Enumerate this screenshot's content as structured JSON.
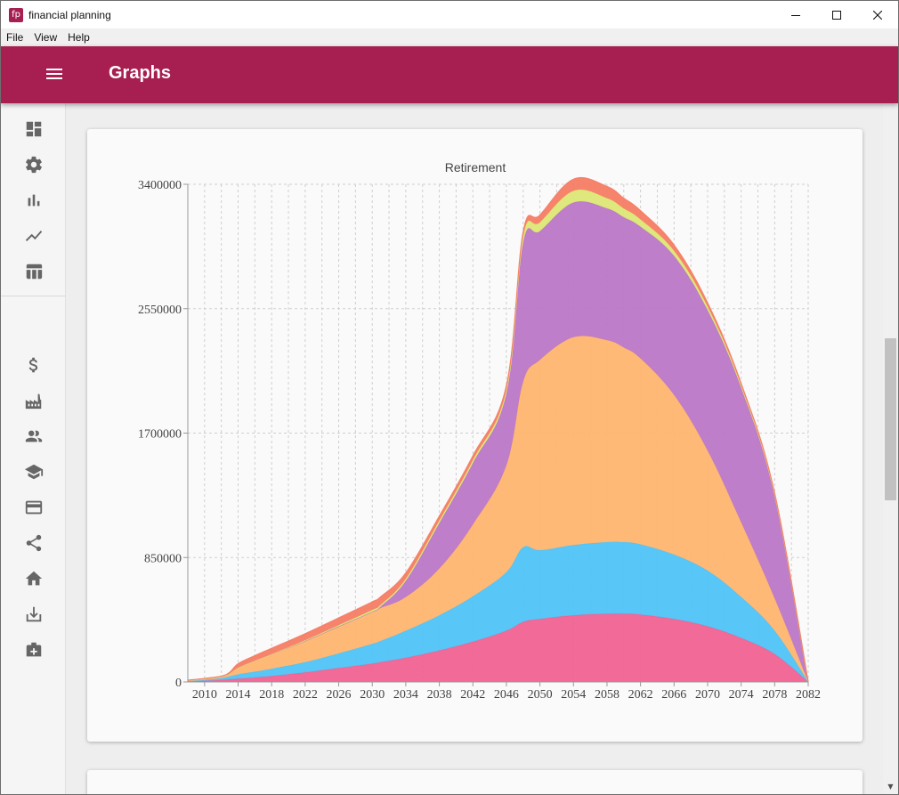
{
  "window": {
    "title": "financial planning",
    "icon_text": "fp",
    "controls": [
      "minimize",
      "maximize",
      "close"
    ]
  },
  "menu": {
    "items": [
      "File",
      "View",
      "Help"
    ]
  },
  "appbar": {
    "title": "Graphs",
    "color": "#a61f50"
  },
  "sidebar": {
    "icons_top": [
      "dashboard-icon",
      "settings-icon",
      "bar-chart-icon",
      "line-chart-icon",
      "table-icon"
    ],
    "icons_bottom": [
      "dollar-icon",
      "factory-icon",
      "people-icon",
      "school-icon",
      "credit-card-icon",
      "share-icon",
      "home-icon",
      "download-icon",
      "hospital-icon"
    ]
  },
  "chart_data": {
    "type": "area",
    "title": "Retirement",
    "stacked": true,
    "x": [
      2008,
      2010,
      2012,
      2013,
      2014,
      2016,
      2018,
      2022,
      2026,
      2030,
      2031,
      2034,
      2038,
      2042,
      2046,
      2048,
      2050,
      2054,
      2058,
      2060,
      2062,
      2066,
      2070,
      2074,
      2078,
      2082
    ],
    "x_ticks": [
      "2010",
      "2014",
      "2018",
      "2022",
      "2026",
      "2030",
      "2034",
      "2038",
      "2042",
      "2046",
      "2050",
      "2054",
      "2058",
      "2062",
      "2066",
      "2070",
      "2074",
      "2078",
      "2082"
    ],
    "y_ticks": [
      "0",
      "850000",
      "1700000",
      "2550000",
      "3400000"
    ],
    "ylim": [
      0,
      3400000
    ],
    "grid": true,
    "series": [
      {
        "color": "#f06292",
        "values": [
          2000,
          8000,
          14000,
          18000,
          22000,
          30000,
          40000,
          65000,
          95000,
          125000,
          135000,
          165000,
          215000,
          275000,
          350000,
          410000,
          430000,
          455000,
          465000,
          465000,
          460000,
          430000,
          380000,
          300000,
          190000,
          0
        ]
      },
      {
        "color": "#4fc3f7",
        "values": [
          3000,
          6000,
          12000,
          20000,
          30000,
          40000,
          50000,
          70000,
          100000,
          135000,
          145000,
          185000,
          240000,
          310000,
          400000,
          510000,
          470000,
          480000,
          490000,
          490000,
          480000,
          440000,
          380000,
          280000,
          160000,
          0
        ]
      },
      {
        "color": "#ffb570",
        "values": [
          5000,
          8000,
          12000,
          20000,
          45000,
          75000,
          100000,
          145000,
          185000,
          220000,
          225000,
          230000,
          320000,
          490000,
          730000,
          1130000,
          1300000,
          1420000,
          1380000,
          1330000,
          1270000,
          1090000,
          820000,
          510000,
          220000,
          0
        ]
      },
      {
        "color": "#bb77c6",
        "values": [
          0,
          0,
          0,
          0,
          0,
          0,
          0,
          0,
          0,
          0,
          10000,
          110000,
          310000,
          420000,
          490000,
          950000,
          880000,
          920000,
          900000,
          890000,
          900000,
          950000,
          960000,
          920000,
          700000,
          0
        ]
      },
      {
        "color": "#dce775",
        "values": [
          0,
          0,
          0,
          0,
          0,
          0,
          0,
          5000,
          8000,
          12000,
          12000,
          15000,
          18000,
          20000,
          25000,
          45000,
          60000,
          80000,
          70000,
          60000,
          50000,
          35000,
          25000,
          15000,
          10000,
          0
        ]
      },
      {
        "color": "#f57c64",
        "values": [
          2000,
          2000,
          2000,
          8000,
          28000,
          35000,
          40000,
          45000,
          50000,
          55000,
          55000,
          40000,
          30000,
          30000,
          30000,
          30000,
          50000,
          80000,
          80000,
          70000,
          60000,
          40000,
          25000,
          15000,
          10000,
          0
        ]
      }
    ]
  }
}
